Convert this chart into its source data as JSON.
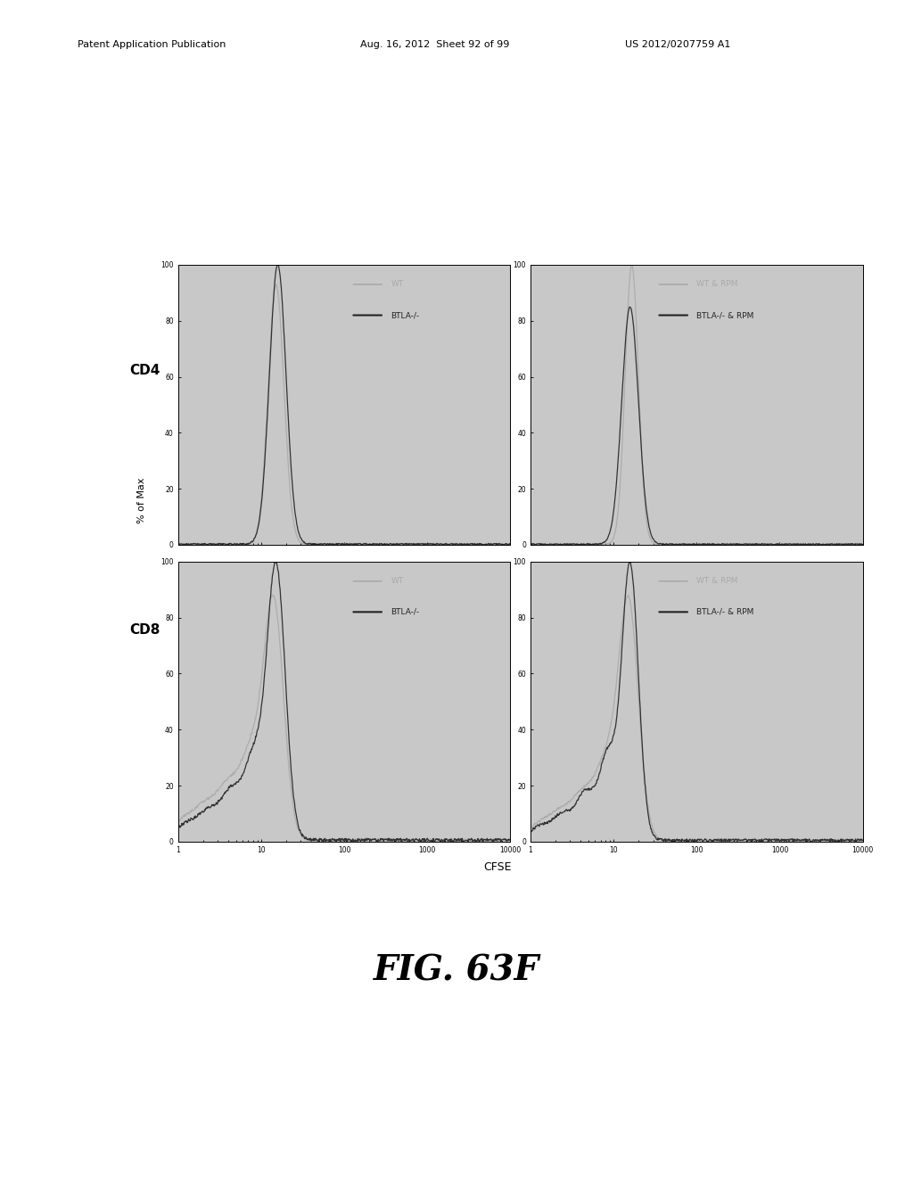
{
  "title": "FIG. 63F",
  "xlabel": "CFSE",
  "ylabel": "% of Max",
  "header_line1": "Patent Application Publication",
  "header_line2": "Aug. 16, 2012  Sheet 92 of 99",
  "header_line3": "US 2012/0207759 A1",
  "panel_row_labels": [
    "CD4",
    "CD8"
  ],
  "legend_top_left": [
    "WT",
    "BTLA-/-"
  ],
  "legend_top_right": [
    "WT & RPM",
    "BTLA-/- & RPM"
  ],
  "color_light": "#aaaaaa",
  "color_dark": "#222222",
  "bg_color": "#c8c8c8",
  "fig_bg": "#ffffff"
}
